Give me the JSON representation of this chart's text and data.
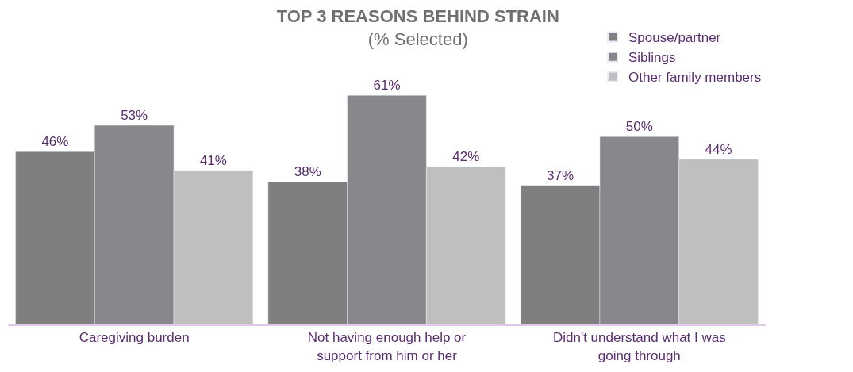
{
  "chart_data": {
    "type": "bar",
    "title": "TOP 3 REASONS BEHIND STRAIN",
    "subtitle": "(% Selected)",
    "categories": [
      "Caregiving burden",
      "Not having enough help or support from him or her",
      "Didn't understand what I was going through"
    ],
    "series": [
      {
        "name": "Spouse/partner",
        "color": "#7f7f7f",
        "values": [
          46,
          38,
          37
        ],
        "value_labels": [
          "46%",
          "38%",
          "37%"
        ]
      },
      {
        "name": "Siblings",
        "color": "#88888c",
        "values": [
          53,
          61,
          50
        ],
        "value_labels": [
          "53%",
          "61%",
          "50%"
        ]
      },
      {
        "name": "Other family members",
        "color": "#bfbfbf",
        "values": [
          41,
          42,
          44
        ],
        "value_labels": [
          "41%",
          "42%",
          "44%"
        ]
      }
    ],
    "legend": "top right"
  }
}
